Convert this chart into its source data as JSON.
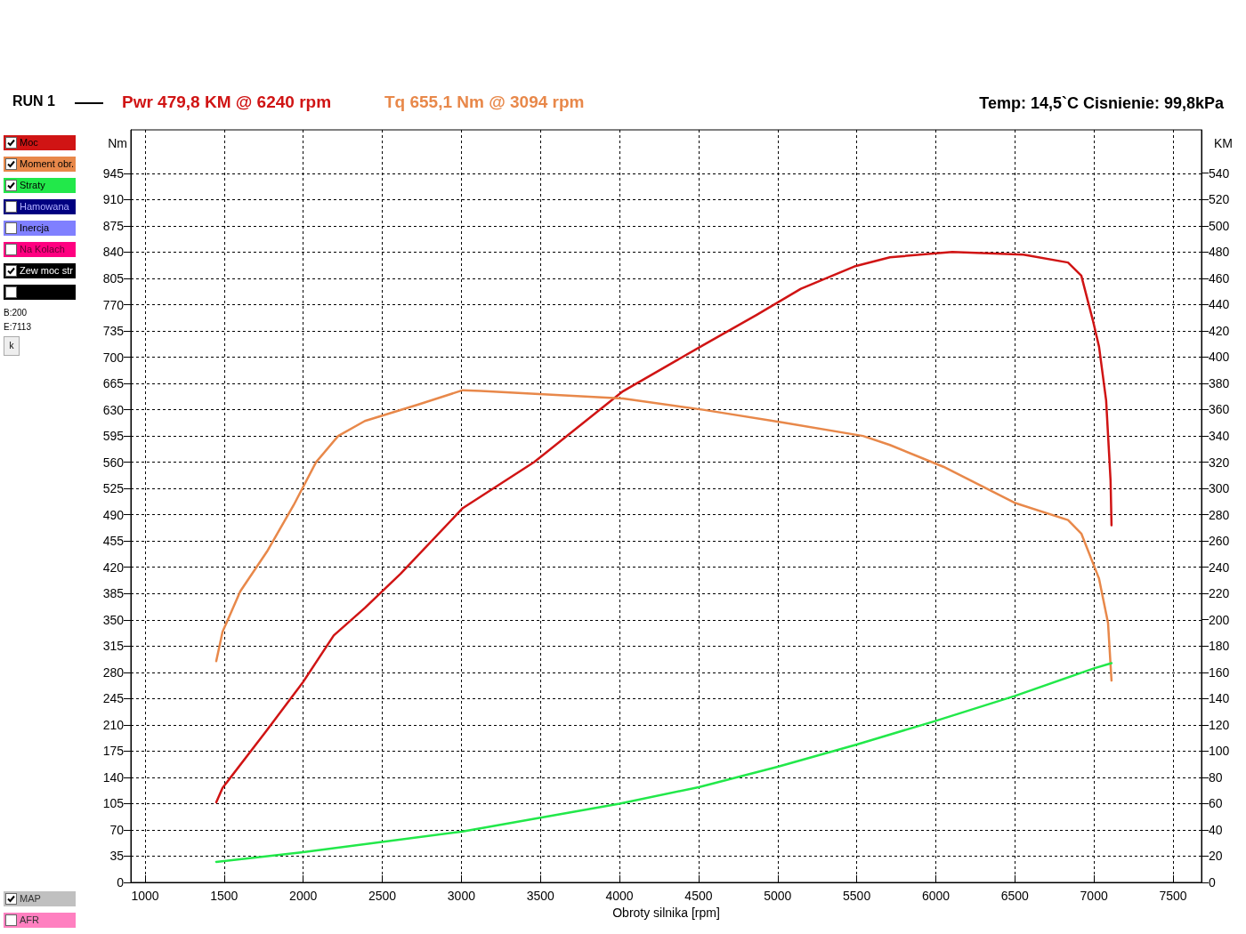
{
  "chart_data": {
    "type": "line",
    "title": "RUN 1",
    "xlabel": "Obroty silnika [rpm]",
    "ylabel": "Nm",
    "y2label": "KM",
    "annotations": [
      "Pwr  479,8 KM @ 6240 rpm",
      "Tq 655,1 Nm @ 3094 rpm",
      "Temp: 14,5`C   Cisnienie: 99,8kPa",
      "Hamowana",
      "Inercja",
      "Na Kolach",
      "Zew moc str",
      "B:200",
      "E:7113",
      "k",
      "MAP",
      "AFR"
    ],
    "xlim": [
      910,
      7680
    ],
    "xticks": [
      1000,
      1500,
      2000,
      2500,
      3000,
      3500,
      4000,
      4500,
      5000,
      5500,
      6000,
      6500,
      7000,
      7500
    ],
    "ylim": [
      0,
      1003
    ],
    "yticks": [
      0,
      35,
      70,
      105,
      140,
      175,
      210,
      245,
      280,
      315,
      350,
      385,
      420,
      455,
      490,
      525,
      560,
      595,
      630,
      665,
      700,
      735,
      770,
      805,
      840,
      875,
      910,
      945
    ],
    "y2lim": [
      0,
      573
    ],
    "y2ticks": [
      0,
      20,
      40,
      60,
      80,
      100,
      120,
      140,
      160,
      180,
      200,
      220,
      240,
      260,
      280,
      300,
      320,
      340,
      360,
      380,
      400,
      420,
      440,
      460,
      480,
      500,
      520,
      540
    ],
    "grid": true,
    "legend": "left",
    "marker": "none",
    "line_style": "solid",
    "series": [
      {
        "name": "Moc",
        "color": "#d01414",
        "axis": "y2",
        "x": [
          1450,
          1490,
          1771,
          1996,
          2193,
          2390,
          2615,
          3009,
          3460,
          4022,
          4528,
          4866,
          5147,
          5485,
          5710,
          6104,
          6554,
          6836,
          6920,
          6993,
          7032,
          7077,
          7105,
          7111
        ],
        "values": [
          61,
          72,
          116,
          152,
          188,
          209,
          235,
          285,
          320,
          374,
          409,
          432,
          452,
          469,
          476,
          480,
          478,
          472,
          462,
          428,
          408,
          367,
          306,
          272
        ]
      },
      {
        "name": "Moment obr.",
        "color": "#e8884a",
        "x": [
          1450,
          1490,
          1602,
          1771,
          1940,
          2081,
          2221,
          2390,
          2728,
          3009,
          3122,
          3572,
          4022,
          4528,
          5034,
          5540,
          5710,
          6048,
          6498,
          6836,
          6920,
          7032,
          7089,
          7111
        ],
        "values": [
          295,
          334,
          388,
          441,
          503,
          560,
          595,
          615,
          637,
          656,
          655,
          650,
          645,
          630,
          613,
          595,
          583,
          554,
          506,
          483,
          465,
          405,
          346,
          269
        ]
      },
      {
        "name": "Straty",
        "color": "#22e84a",
        "axis": "y2",
        "x": [
          1450,
          2000,
          3000,
          4000,
          4500,
          5000,
          5500,
          6000,
          6500,
          7000,
          7111
        ],
        "values": [
          15.6,
          23,
          38.6,
          60,
          72.5,
          88,
          105,
          123,
          142,
          163,
          167
        ]
      }
    ]
  }
}
